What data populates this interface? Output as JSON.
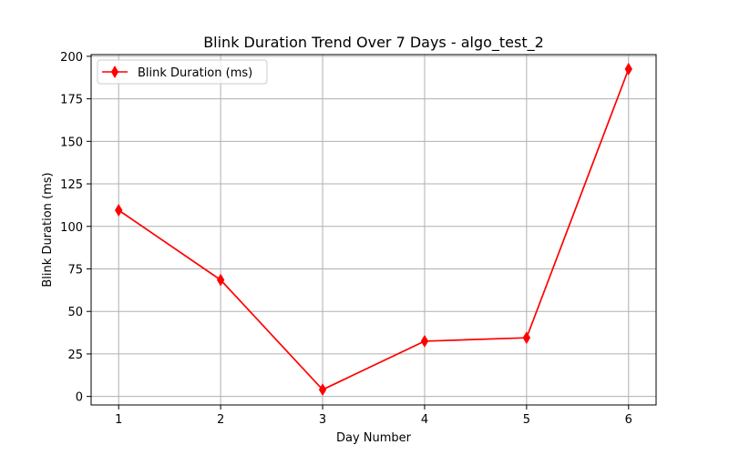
{
  "chart_data": {
    "type": "line",
    "title": "Blink Duration Trend Over 7 Days - algo_test_2",
    "xlabel": "Day Number",
    "ylabel": "Blink Duration (ms)",
    "x": [
      1,
      2,
      3,
      4,
      5,
      6
    ],
    "series": [
      {
        "name": "Blink Duration (ms)",
        "values": [
          109.5,
          68.5,
          4,
          32.5,
          34.5,
          192.5
        ],
        "color": "#ff0000",
        "marker": "thin-diamond"
      }
    ],
    "xlim": [
      0.73,
      6.27
    ],
    "ylim": [
      -5,
      201
    ],
    "xticks": [
      1,
      2,
      3,
      4,
      5,
      6
    ],
    "yticks": [
      0,
      25,
      50,
      75,
      100,
      125,
      150,
      175,
      200
    ],
    "grid": true,
    "legend_position": "upper-left"
  }
}
